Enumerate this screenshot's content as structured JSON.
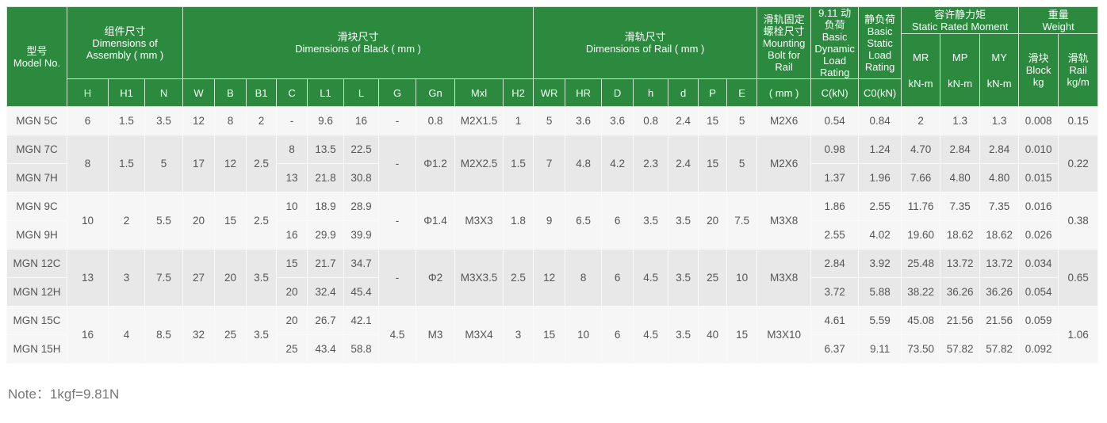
{
  "header": {
    "model": [
      "型号",
      "Model No."
    ],
    "assembly": [
      "组件尺寸",
      "Dimensions of",
      "Assembly ( mm )"
    ],
    "block": [
      "滑块尺寸",
      "Dimensions of Black ( mm )"
    ],
    "rail": [
      "滑轨尺寸",
      "Dimensions of Rail ( mm )"
    ],
    "bolt": [
      "滑轨固定",
      "螺栓尺寸",
      "Mounting",
      "Bolt for",
      "Rail"
    ],
    "dynamic": [
      "9.11 动",
      "负荷",
      "Basic",
      "Dynamic",
      "Load",
      "Rating"
    ],
    "static": [
      "静负荷",
      "Basic",
      "Static",
      "Load",
      "Rating"
    ],
    "moment": [
      "容许静力矩",
      "Static Rated Moment"
    ],
    "weight": [
      "重量",
      "Weight"
    ],
    "moment_cols": [
      [
        "MR",
        "kN-m"
      ],
      [
        "MP",
        "kN-m"
      ],
      [
        "MY",
        "kN-m"
      ]
    ],
    "weight_cols": [
      [
        "滑块",
        "Block",
        "kg"
      ],
      [
        "滑轨",
        "Rail",
        "kg/m"
      ]
    ],
    "sub": [
      "H",
      "H1",
      "N",
      "W",
      "B",
      "B1",
      "C",
      "L1",
      "L",
      "G",
      "Gn",
      "Mxl",
      "H2",
      "WR",
      "HR",
      "D",
      "h",
      "d",
      "P",
      "E",
      "( mm )",
      "C(kN)",
      "C0(kN)"
    ]
  },
  "groups": [
    {
      "rows": [
        [
          "MGN 5C",
          "6",
          "1.5",
          "3.5",
          "12",
          "8",
          "2",
          "-",
          "9.6",
          "16",
          "-",
          "0.8",
          "M2X1.5",
          "1",
          "5",
          "3.6",
          "3.6",
          "0.8",
          "2.4",
          "15",
          "5",
          "M2X6",
          "0.54",
          "0.84",
          "2",
          "1.3",
          "1.3",
          "0.008",
          "0.15"
        ]
      ]
    },
    {
      "rows": [
        [
          "MGN 7C",
          "8",
          "1.5",
          "5",
          "17",
          "12",
          "2.5",
          "8",
          "13.5",
          "22.5",
          "-",
          "Φ1.2",
          "M2X2.5",
          "1.5",
          "7",
          "4.8",
          "4.2",
          "2.3",
          "2.4",
          "15",
          "5",
          "M2X6",
          "0.98",
          "1.24",
          "4.70",
          "2.84",
          "2.84",
          "0.010",
          "0.22"
        ],
        [
          "MGN 7H",
          "8",
          "1.5",
          "5",
          "17",
          "12",
          "2.5",
          "13",
          "21.8",
          "30.8",
          "-",
          "Φ1.2",
          "M2X2.5",
          "1.5",
          "7",
          "4.8",
          "4.2",
          "2.3",
          "2.4",
          "15",
          "5",
          "M2X6",
          "1.37",
          "1.96",
          "7.66",
          "4.80",
          "4.80",
          "0.015",
          "0.22"
        ]
      ]
    },
    {
      "rows": [
        [
          "MGN 9C",
          "10",
          "2",
          "5.5",
          "20",
          "15",
          "2.5",
          "10",
          "18.9",
          "28.9",
          "-",
          "Φ1.4",
          "M3X3",
          "1.8",
          "9",
          "6.5",
          "6",
          "3.5",
          "3.5",
          "20",
          "7.5",
          "M3X8",
          "1.86",
          "2.55",
          "11.76",
          "7.35",
          "7.35",
          "0.016",
          "0.38"
        ],
        [
          "MGN 9H",
          "10",
          "2",
          "5.5",
          "20",
          "15",
          "2.5",
          "16",
          "29.9",
          "39.9",
          "-",
          "Φ1.4",
          "M3X3",
          "1.8",
          "9",
          "6.5",
          "6",
          "3.5",
          "3.5",
          "20",
          "7.5",
          "M3X8",
          "2.55",
          "4.02",
          "19.60",
          "18.62",
          "18.62",
          "0.026",
          "0.38"
        ]
      ]
    },
    {
      "rows": [
        [
          "MGN 12C",
          "13",
          "3",
          "7.5",
          "27",
          "20",
          "3.5",
          "15",
          "21.7",
          "34.7",
          "-",
          "Φ2",
          "M3X3.5",
          "2.5",
          "12",
          "8",
          "6",
          "4.5",
          "3.5",
          "25",
          "10",
          "M3X8",
          "2.84",
          "3.92",
          "25.48",
          "13.72",
          "13.72",
          "0.034",
          "0.65"
        ],
        [
          "MGN 12H",
          "13",
          "3",
          "7.5",
          "27",
          "20",
          "3.5",
          "20",
          "32.4",
          "45.4",
          "-",
          "Φ2",
          "M3X3.5",
          "2.5",
          "12",
          "8",
          "6",
          "4.5",
          "3.5",
          "25",
          "10",
          "M3X8",
          "3.72",
          "5.88",
          "38.22",
          "36.26",
          "36.26",
          "0.054",
          "0.65"
        ]
      ]
    },
    {
      "rows": [
        [
          "MGN 15C",
          "16",
          "4",
          "8.5",
          "32",
          "25",
          "3.5",
          "20",
          "26.7",
          "42.1",
          "4.5",
          "M3",
          "M3X4",
          "3",
          "15",
          "10",
          "6",
          "4.5",
          "3.5",
          "40",
          "15",
          "M3X10",
          "4.61",
          "5.59",
          "45.08",
          "21.56",
          "21.56",
          "0.059",
          "1.06"
        ],
        [
          "MGN 15H",
          "16",
          "4",
          "8.5",
          "32",
          "25",
          "3.5",
          "25",
          "43.4",
          "58.8",
          "4.5",
          "M3",
          "M3X4",
          "3",
          "15",
          "10",
          "6",
          "4.5",
          "3.5",
          "40",
          "15",
          "M3X10",
          "6.37",
          "9.11",
          "73.50",
          "57.82",
          "57.82",
          "0.092",
          "1.06"
        ]
      ]
    }
  ],
  "note": "Note：1kgf=9.81N",
  "colors": {
    "header_bg": "#2b8a3e",
    "row_light": "#f6f6f6",
    "row_gray": "#e8e8e8"
  }
}
